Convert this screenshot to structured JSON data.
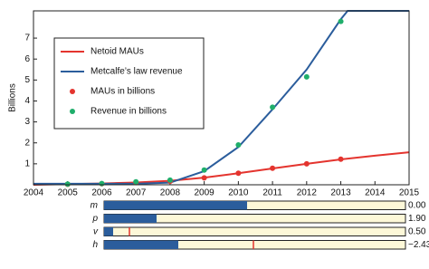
{
  "chart_data": {
    "type": "line",
    "y_label": "Billions",
    "xlim": [
      2004,
      2015
    ],
    "xticks": [
      2004,
      2005,
      2006,
      2007,
      2008,
      2009,
      2010,
      2011,
      2012,
      2013,
      2014,
      2015
    ],
    "ylim": [
      0,
      8.3
    ],
    "yticks": [
      1,
      2,
      3,
      4,
      5,
      6,
      7
    ],
    "legend": "upper left",
    "series": [
      {
        "name": "Netoid MAUs",
        "color": "#e4342e",
        "mode": "line",
        "x": [
          2004,
          2005,
          2006,
          2007,
          2008,
          2009,
          2010,
          2011,
          2012,
          2013,
          2014,
          2015
        ],
        "values": [
          0,
          0.03,
          0.06,
          0.11,
          0.19,
          0.34,
          0.55,
          0.78,
          1.0,
          1.21,
          1.39,
          1.55
        ]
      },
      {
        "name": "Metcalfe’s law revenue",
        "color": "#2b5d9c",
        "mode": "line",
        "x": [
          2004,
          2005,
          2006,
          2007,
          2008,
          2009,
          2010,
          2011,
          2012,
          2013,
          2013.2,
          2015
        ],
        "values": [
          0.05,
          0.05,
          0.05,
          0.05,
          0.1,
          0.65,
          1.8,
          3.6,
          5.5,
          7.9,
          8.3,
          8.3
        ]
      },
      {
        "name": "MAUs in billions",
        "color": "#e4342e",
        "mode": "markers",
        "x": [
          2005,
          2006,
          2007,
          2008,
          2009,
          2010,
          2011,
          2012,
          2013
        ],
        "values": [
          0.02,
          0.05,
          0.1,
          0.17,
          0.33,
          0.55,
          0.79,
          1.0,
          1.22
        ]
      },
      {
        "name": "Revenue in billions",
        "color": "#1fae6b",
        "mode": "markers",
        "x": [
          2005,
          2006,
          2007,
          2008,
          2009,
          2010,
          2011,
          2012,
          2013
        ],
        "values": [
          0.03,
          0.06,
          0.14,
          0.22,
          0.7,
          1.9,
          3.7,
          5.15,
          7.8
        ]
      }
    ]
  },
  "controls": [
    {
      "label": "m",
      "value": "0.00"
    },
    {
      "label": "p",
      "value": "1.90"
    },
    {
      "label": "v",
      "value": "0.50"
    },
    {
      "label": "h",
      "value": "−2.43"
    }
  ]
}
